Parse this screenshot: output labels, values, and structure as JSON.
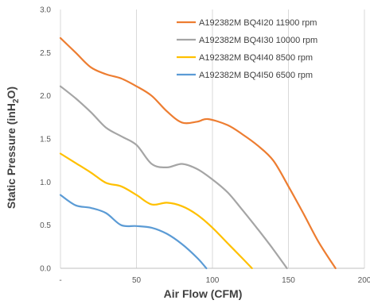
{
  "chart_data": {
    "type": "line",
    "xlabel": "Air Flow (CFM)",
    "ylabel_parts": [
      "Static Pressure (inH",
      "2",
      "O)"
    ],
    "xlim": [
      0,
      200
    ],
    "ylim": [
      0,
      3.0
    ],
    "x_ticks": [
      0,
      50,
      100,
      150,
      200
    ],
    "x_tick_labels": [
      "-",
      "50",
      "100",
      "150",
      "200"
    ],
    "y_ticks": [
      0,
      0.5,
      1.0,
      1.5,
      2.0,
      2.5,
      3.0
    ],
    "y_tick_labels": [
      "0.0",
      "0.5",
      "1.0",
      "1.5",
      "2.0",
      "2.5",
      "3.0"
    ],
    "grid": "vertical lines only",
    "legend_position": "top-right",
    "series": [
      {
        "name": "A192382M BQ4I20 11900 rpm",
        "color": "#ED7D31",
        "x": [
          0,
          10,
          20,
          30,
          40,
          50,
          60,
          70,
          80,
          90,
          97,
          110,
          120,
          130,
          140,
          150,
          160,
          170,
          181
        ],
        "y": [
          2.67,
          2.5,
          2.33,
          2.25,
          2.2,
          2.11,
          2.0,
          1.82,
          1.69,
          1.7,
          1.73,
          1.66,
          1.55,
          1.42,
          1.25,
          0.95,
          0.63,
          0.3,
          0.0
        ]
      },
      {
        "name": "A192382M BQ4I30 10000 rpm",
        "color": "#A5A5A5",
        "x": [
          0,
          10,
          20,
          30,
          40,
          50,
          60,
          70,
          80,
          90,
          100,
          110,
          120,
          130,
          140,
          149
        ],
        "y": [
          2.11,
          1.97,
          1.81,
          1.63,
          1.53,
          1.43,
          1.21,
          1.17,
          1.21,
          1.15,
          1.03,
          0.88,
          0.67,
          0.45,
          0.22,
          0.0
        ]
      },
      {
        "name": "A192382M BQ4I40 8500 rpm",
        "color": "#FFC000",
        "x": [
          0,
          10,
          20,
          30,
          40,
          50,
          60,
          70,
          80,
          90,
          100,
          110,
          120,
          126
        ],
        "y": [
          1.33,
          1.22,
          1.11,
          0.99,
          0.95,
          0.85,
          0.74,
          0.76,
          0.72,
          0.62,
          0.47,
          0.29,
          0.11,
          0.0
        ]
      },
      {
        "name": "A192382M BQ4I50 6500 rpm",
        "color": "#5B9BD5",
        "x": [
          0,
          10,
          20,
          30,
          40,
          50,
          60,
          70,
          80,
          90,
          96
        ],
        "y": [
          0.85,
          0.73,
          0.7,
          0.64,
          0.5,
          0.49,
          0.47,
          0.4,
          0.28,
          0.12,
          0.0
        ]
      }
    ]
  }
}
